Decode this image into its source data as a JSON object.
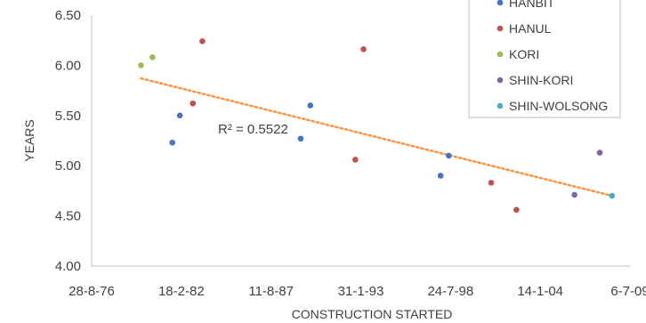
{
  "chart_data": {
    "type": "scatter",
    "title": "",
    "xlabel": "CONSTRUCTION STARTED",
    "ylabel": "YEARS",
    "x_tick_labels": [
      "28-8-76",
      "18-2-82",
      "11-8-87",
      "31-1-93",
      "24-7-98",
      "14-1-04",
      "6-7-09"
    ],
    "x_ticks": [
      "1976-08-28",
      "1982-02-18",
      "1987-08-11",
      "1993-01-31",
      "1998-07-24",
      "2004-01-14",
      "2009-07-06"
    ],
    "xlim": [
      "1976-08-28",
      "2009-07-06"
    ],
    "y_tick_labels": [
      "4.00",
      "4.50",
      "5.00",
      "5.50",
      "6.00",
      "6.50"
    ],
    "ylim": [
      4.0,
      6.5
    ],
    "grid": false,
    "legend_position": "top-right",
    "series": [
      {
        "name": "HANBIT",
        "color": "#4472c4",
        "points": [
          {
            "x": "1981-08-01",
            "y": 5.23
          },
          {
            "x": "1982-01-15",
            "y": 5.5
          },
          {
            "x": "1989-06-01",
            "y": 5.27
          },
          {
            "x": "1990-01-01",
            "y": 5.6
          },
          {
            "x": "1997-12-15",
            "y": 4.9
          },
          {
            "x": "1998-06-15",
            "y": 5.1
          }
        ]
      },
      {
        "name": "HANUL",
        "color": "#c0504d",
        "points": [
          {
            "x": "1983-06-01",
            "y": 6.24
          },
          {
            "x": "1982-11-01",
            "y": 5.62
          },
          {
            "x": "1993-04-01",
            "y": 6.16
          },
          {
            "x": "1992-10-01",
            "y": 5.06
          },
          {
            "x": "2001-01-15",
            "y": 4.83
          },
          {
            "x": "2002-08-01",
            "y": 4.56
          }
        ]
      },
      {
        "name": "KORI",
        "color": "#9bbb59",
        "points": [
          {
            "x": "1979-09-01",
            "y": 6.0
          },
          {
            "x": "1980-05-15",
            "y": 6.08
          }
        ]
      },
      {
        "name": "SHIN-KORI",
        "color": "#8064a2",
        "points": [
          {
            "x": "2006-02-15",
            "y": 4.71
          },
          {
            "x": "2007-09-01",
            "y": 5.13
          }
        ]
      },
      {
        "name": "SHIN-WOLSONG",
        "color": "#4bacc6",
        "points": [
          {
            "x": "2008-06-01",
            "y": 4.7
          }
        ]
      }
    ],
    "trendline": {
      "type": "linear",
      "color": "#f79646",
      "style": "dotted",
      "x_start": "1979-09-01",
      "y_start": 5.87,
      "x_end": "2008-06-01",
      "y_end": 4.7,
      "r2_label": "R² = 0.5522"
    }
  }
}
